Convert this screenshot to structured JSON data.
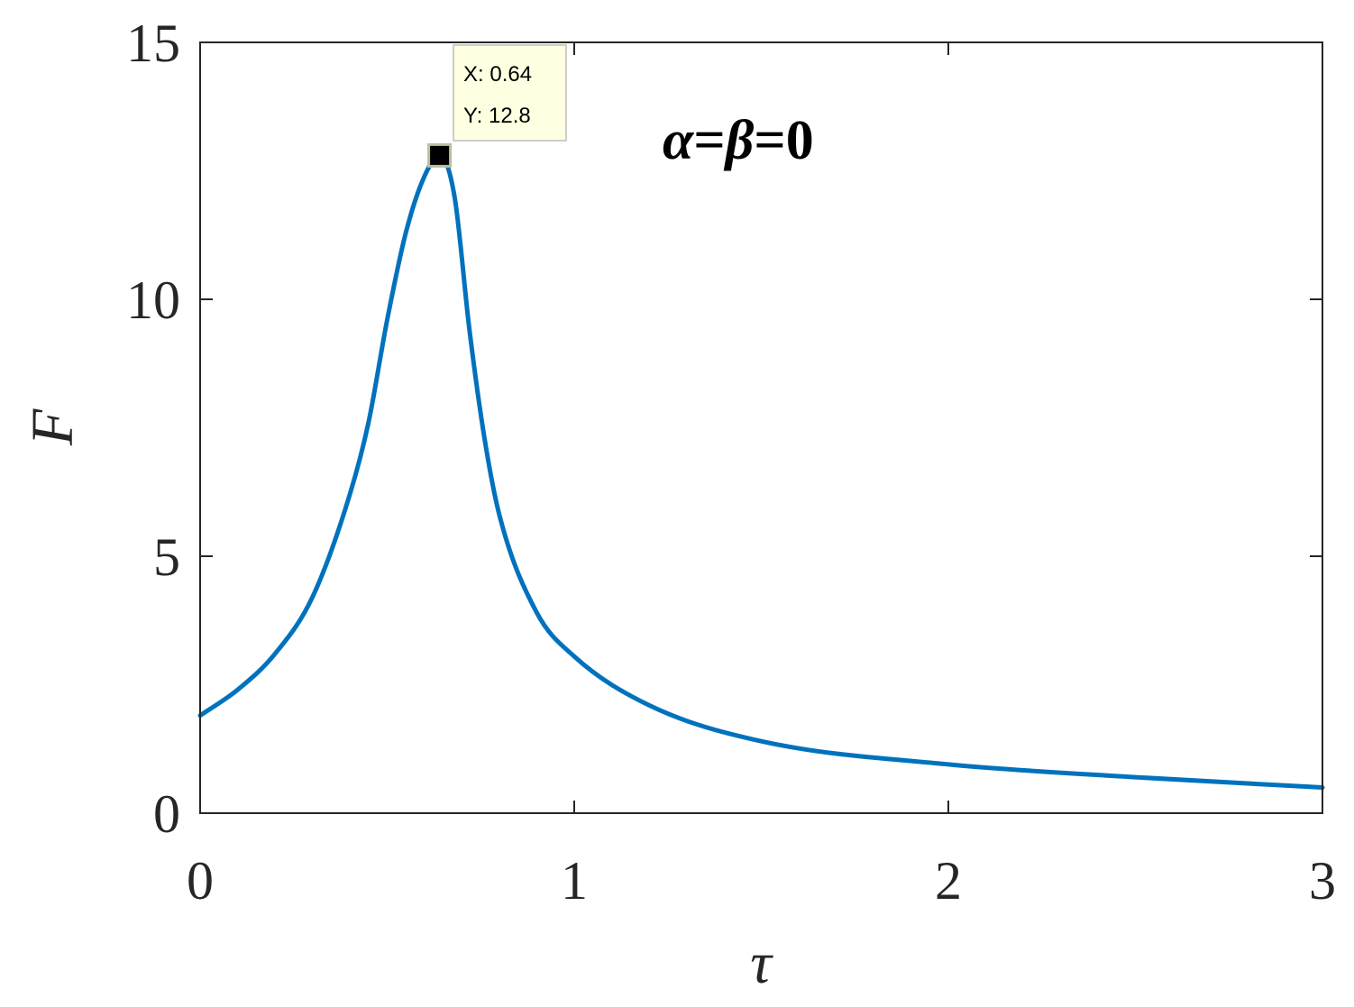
{
  "chart_data": {
    "type": "line",
    "xlabel": "τ",
    "ylabel": "F",
    "xlim": [
      0,
      3
    ],
    "ylim": [
      0,
      15
    ],
    "x_ticks": [
      "0",
      "1",
      "2",
      "3"
    ],
    "y_ticks": [
      "0",
      "5",
      "10",
      "15"
    ],
    "grid": false,
    "series": [
      {
        "color": "#0072BD",
        "x": [
          0,
          0.1,
          0.2,
          0.3,
          0.4,
          0.45,
          0.5,
          0.55,
          0.6,
          0.64,
          0.68,
          0.72,
          0.76,
          0.8,
          0.9,
          1.0,
          1.2,
          1.5,
          2.0,
          2.5,
          3.0
        ],
        "y": [
          1.9,
          2.4,
          3.1,
          4.2,
          6.2,
          7.6,
          9.6,
          11.3,
          12.4,
          12.8,
          12.0,
          9.4,
          7.3,
          5.8,
          3.9,
          3.05,
          2.1,
          1.4,
          0.95,
          0.7,
          0.5
        ]
      }
    ],
    "data_tip": {
      "x": 0.64,
      "y": 12.8,
      "x_text": "X: 0.64",
      "y_text": "Y: 12.8"
    },
    "annotation": {
      "alpha": "α",
      "eq1": "=",
      "beta": "β",
      "eq2": "=0"
    }
  }
}
